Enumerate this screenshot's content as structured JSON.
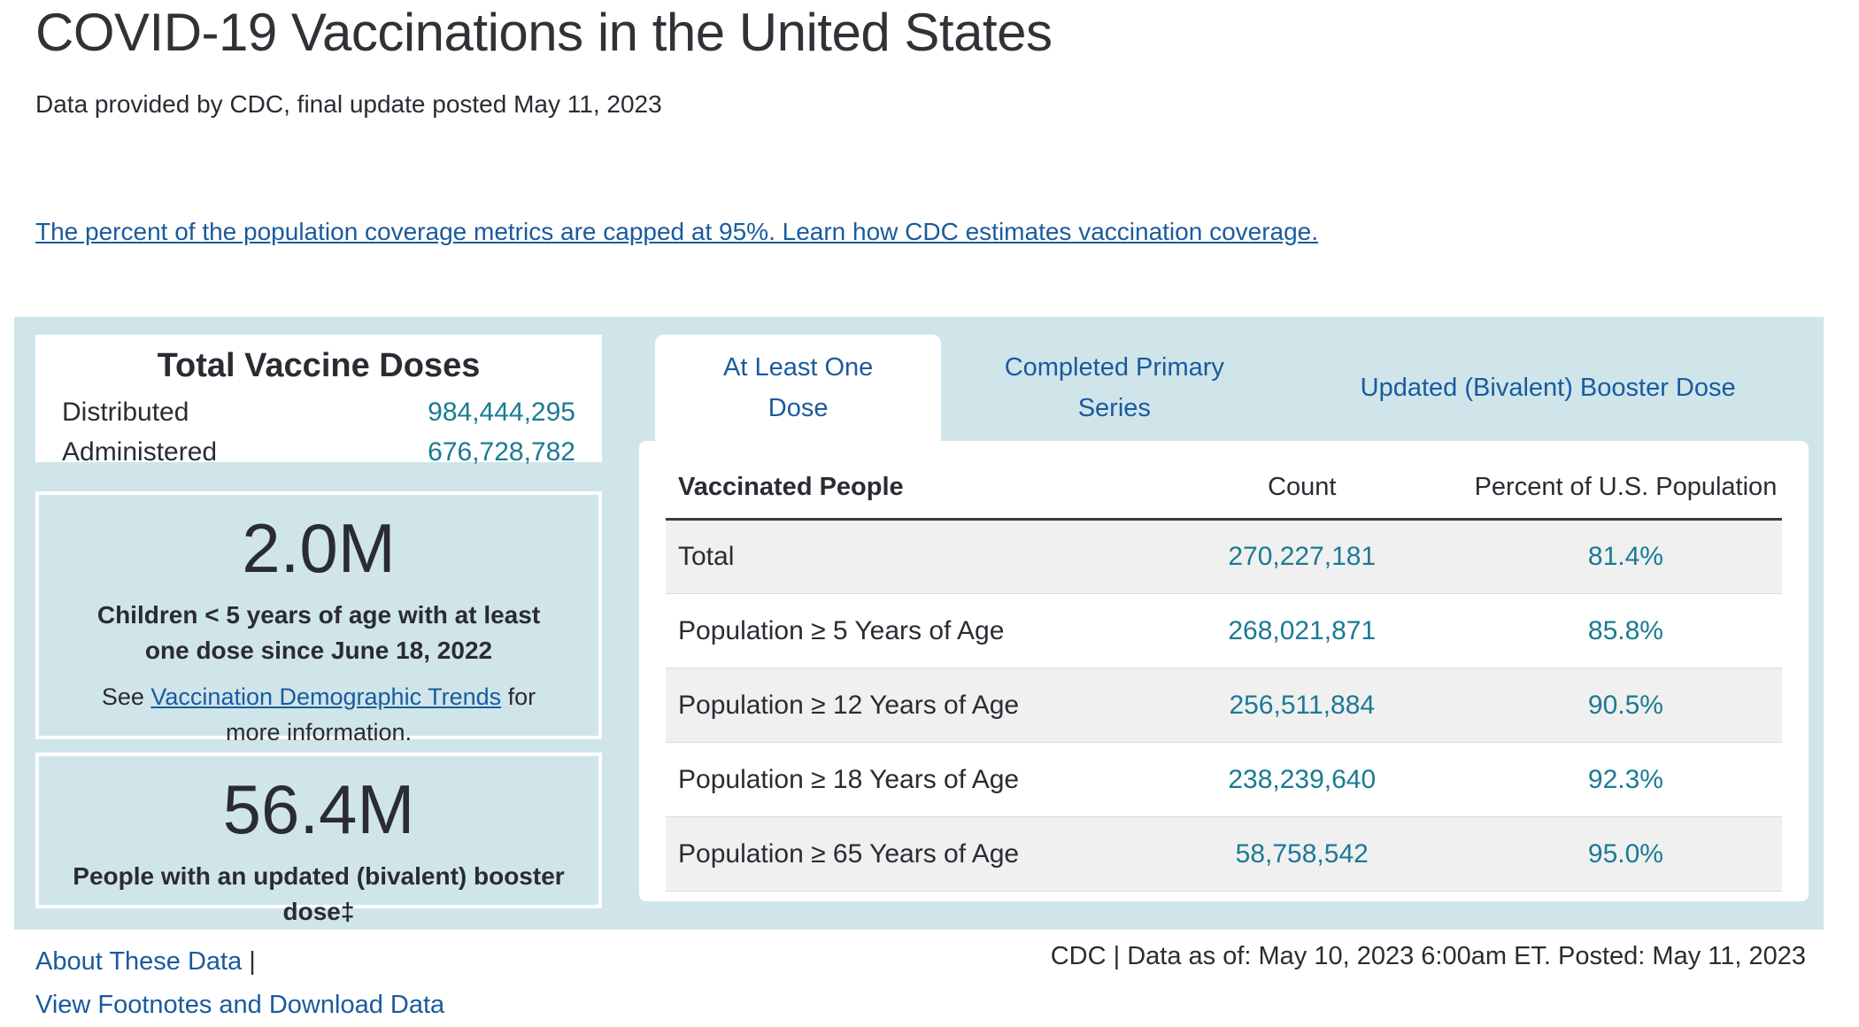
{
  "header": {
    "title": "COVID-19 Vaccinations in the United States",
    "subtitle": "Data provided by CDC, final update posted May 11, 2023",
    "coverage_note_link": "The percent of the population coverage metrics are capped at 95%. Learn how CDC estimates vaccination coverage."
  },
  "summary": {
    "total_doses": {
      "title": "Total Vaccine Doses",
      "distributed_label": "Distributed",
      "distributed_value": "984,444,295",
      "administered_label": "Administered",
      "administered_value": "676,728,782"
    },
    "children_box": {
      "value": "2.0M",
      "description": "Children < 5 years of age with at least one dose since June 18, 2022",
      "note_prefix": "See ",
      "note_link": "Vaccination Demographic Trends",
      "note_suffix": " for more information."
    },
    "booster_box": {
      "value": "56.4M",
      "description": "People with an updated (bivalent) booster dose‡"
    }
  },
  "tabs": [
    {
      "label": "At Least One Dose",
      "active": true
    },
    {
      "label": "Completed Primary Series",
      "active": false
    },
    {
      "label": "Updated (Bivalent) Booster Dose",
      "active": false
    }
  ],
  "table": {
    "columns": {
      "label": "Vaccinated People",
      "count": "Count",
      "percent": "Percent of U.S. Population"
    },
    "rows": [
      {
        "label": "Total",
        "count": "270,227,181",
        "percent": "81.4%"
      },
      {
        "label": "Population ≥ 5 Years of Age",
        "count": "268,021,871",
        "percent": "85.8%"
      },
      {
        "label": "Population ≥ 12 Years of Age",
        "count": "256,511,884",
        "percent": "90.5%"
      },
      {
        "label": "Population ≥ 18 Years of Age",
        "count": "238,239,640",
        "percent": "92.3%"
      },
      {
        "label": "Population ≥ 65 Years of Age",
        "count": "58,758,542",
        "percent": "95.0%"
      }
    ]
  },
  "footer": {
    "about_link": "About These Data",
    "separator": "|",
    "footnotes_link": "View Footnotes and Download Data",
    "source_note": "CDC | Data as of: May 10, 2023 6:00am ET. Posted: May 11, 2023"
  },
  "colors": {
    "accent_teal": "#1b7a93",
    "link_blue": "#1a5a9e",
    "panel_blue": "#cfe5ea",
    "shaded_row_gray": "#f0f0f1",
    "text_dark": "#2b2b33"
  }
}
